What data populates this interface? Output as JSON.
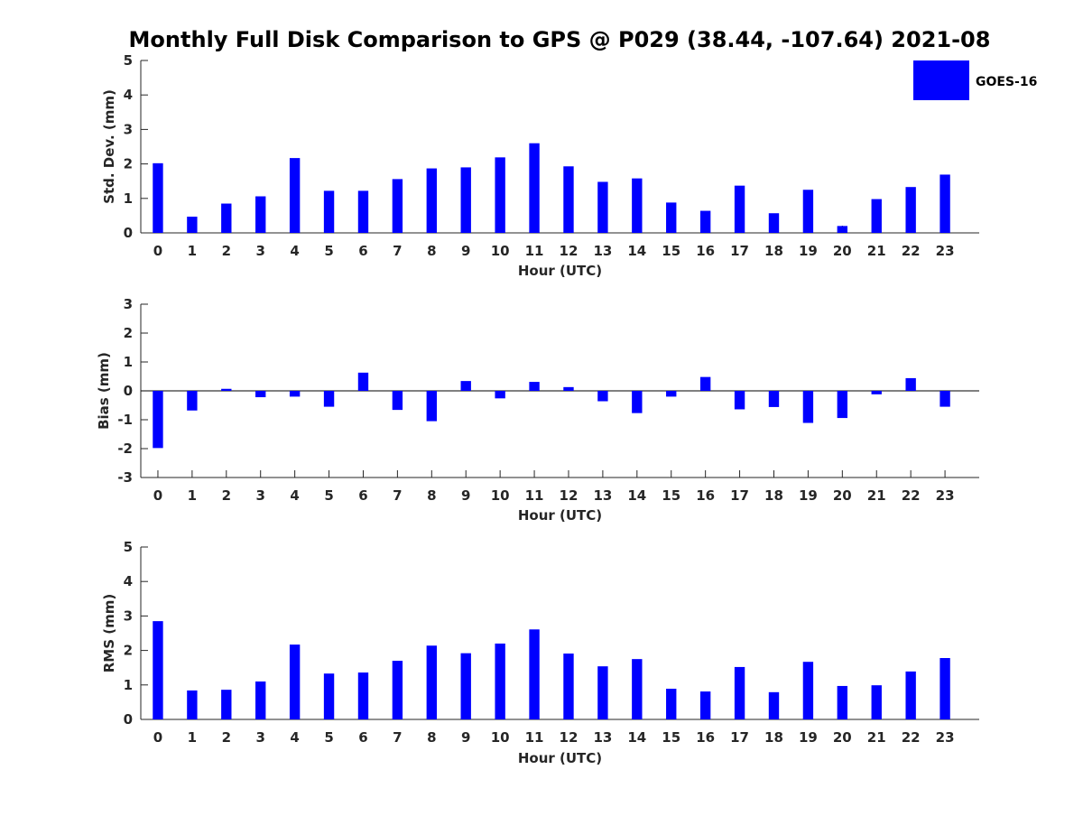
{
  "figure": {
    "title": "Monthly Full Disk Comparison to GPS @ P029 (38.44, -107.64) 2021-08"
  },
  "legend": {
    "label": "GOES-16",
    "color": "#0000ff"
  },
  "chart_data": [
    {
      "type": "bar",
      "categories": [
        "0",
        "1",
        "2",
        "3",
        "4",
        "5",
        "6",
        "7",
        "8",
        "9",
        "10",
        "11",
        "12",
        "13",
        "14",
        "15",
        "16",
        "17",
        "18",
        "19",
        "20",
        "21",
        "22",
        "23"
      ],
      "series": [
        {
          "name": "GOES-16",
          "values": [
            2.02,
            0.47,
            0.85,
            1.06,
            2.17,
            1.22,
            1.22,
            1.56,
            1.87,
            1.9,
            2.19,
            2.6,
            1.93,
            1.48,
            1.58,
            0.88,
            0.64,
            1.37,
            0.57,
            1.25,
            0.2,
            0.98,
            1.33,
            1.69
          ]
        }
      ],
      "xlabel": "Hour (UTC)",
      "ylabel": "Std. Dev. (mm)",
      "ylim": [
        0,
        5
      ],
      "yticks": [
        0,
        1,
        2,
        3,
        4,
        5
      ],
      "grid": false,
      "legend_position": "top-right"
    },
    {
      "type": "bar",
      "categories": [
        "0",
        "1",
        "2",
        "3",
        "4",
        "5",
        "6",
        "7",
        "8",
        "9",
        "10",
        "11",
        "12",
        "13",
        "14",
        "15",
        "16",
        "17",
        "18",
        "19",
        "20",
        "21",
        "22",
        "23"
      ],
      "series": [
        {
          "name": "GOES-16",
          "values": [
            -1.98,
            -0.68,
            0.07,
            -0.22,
            -0.2,
            -0.55,
            0.63,
            -0.66,
            -1.05,
            0.34,
            -0.26,
            0.31,
            0.13,
            -0.36,
            -0.77,
            -0.2,
            0.48,
            -0.64,
            -0.56,
            -1.11,
            -0.94,
            -0.12,
            0.44,
            -0.55
          ]
        }
      ],
      "xlabel": "Hour (UTC)",
      "ylabel": "Bias (mm)",
      "ylim": [
        -3,
        3
      ],
      "yticks": [
        -3,
        -2,
        -1,
        0,
        1,
        2,
        3
      ],
      "grid": false
    },
    {
      "type": "bar",
      "categories": [
        "0",
        "1",
        "2",
        "3",
        "4",
        "5",
        "6",
        "7",
        "8",
        "9",
        "10",
        "11",
        "12",
        "13",
        "14",
        "15",
        "16",
        "17",
        "18",
        "19",
        "20",
        "21",
        "22",
        "23"
      ],
      "series": [
        {
          "name": "GOES-16",
          "values": [
            2.85,
            0.84,
            0.86,
            1.1,
            2.17,
            1.33,
            1.36,
            1.7,
            2.14,
            1.92,
            2.2,
            2.61,
            1.91,
            1.54,
            1.75,
            0.89,
            0.81,
            1.52,
            0.79,
            1.67,
            0.97,
            0.99,
            1.39,
            1.78
          ]
        }
      ],
      "xlabel": "Hour (UTC)",
      "ylabel": "RMS (mm)",
      "ylim": [
        0,
        5
      ],
      "yticks": [
        0,
        1,
        2,
        3,
        4,
        5
      ],
      "grid": false
    }
  ]
}
